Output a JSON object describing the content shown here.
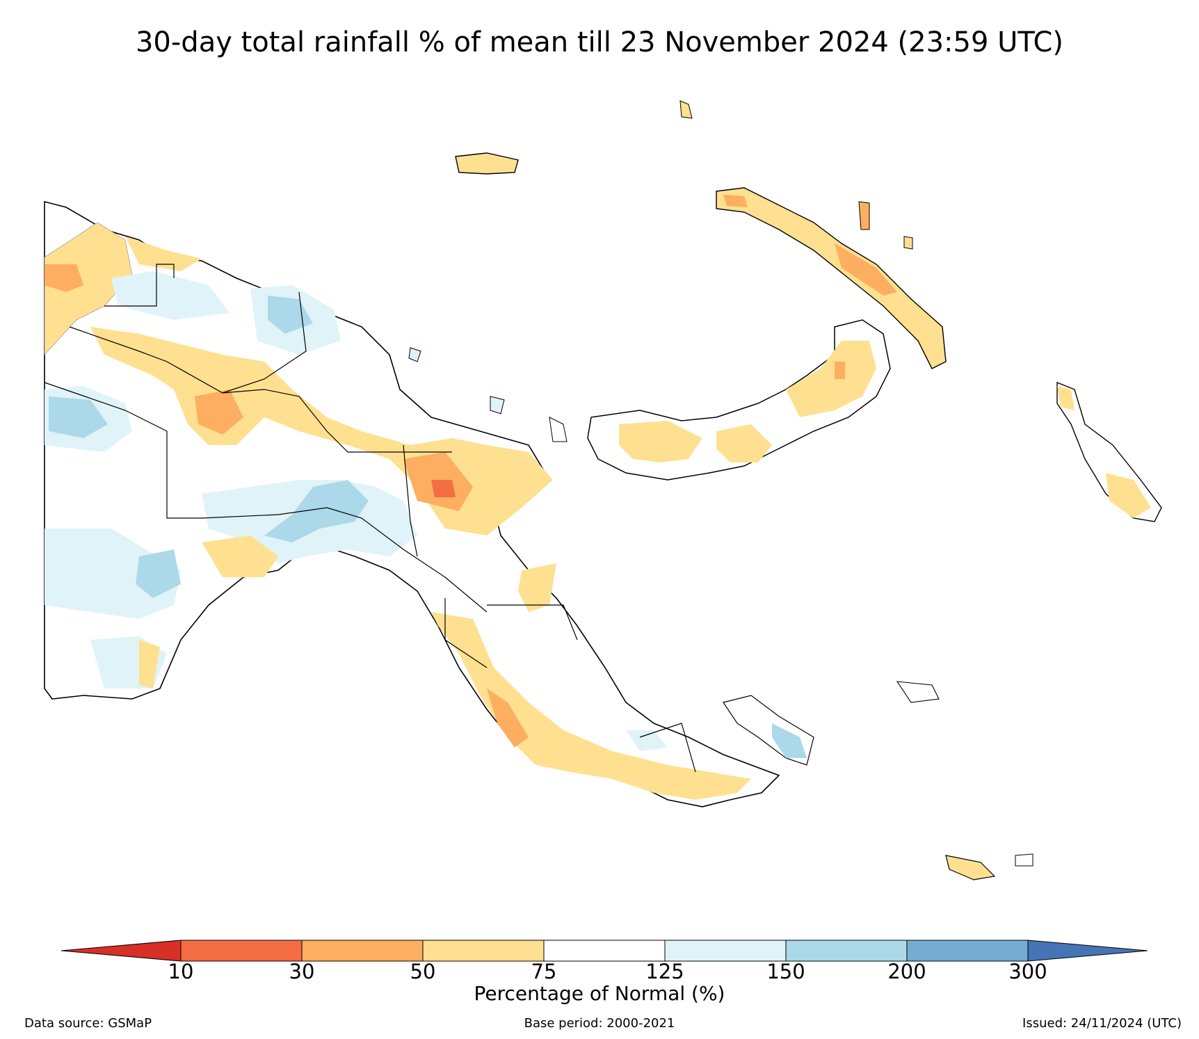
{
  "title": "30-day total rainfall % of mean till 23 November 2024 (23:59 UTC)",
  "colorbar": {
    "label": "Percentage of Normal (%)",
    "ticks": [
      "10",
      "30",
      "50",
      "75",
      "125",
      "150",
      "200",
      "300"
    ],
    "colors": {
      "below_10": "#d73027",
      "10_30": "#f46d43",
      "30_50": "#fdae61",
      "50_75": "#fee090",
      "75_125": "#ffffff",
      "125_150": "#e0f3f8",
      "150_200": "#abd9e9",
      "200_300": "#74add1",
      "above_300": "#4575b4"
    }
  },
  "footer": {
    "source": "Data source: GSMaP",
    "base_period": "Base period: 2000-2021",
    "issued": "Issued: 24/11/2024 (UTC)"
  }
}
